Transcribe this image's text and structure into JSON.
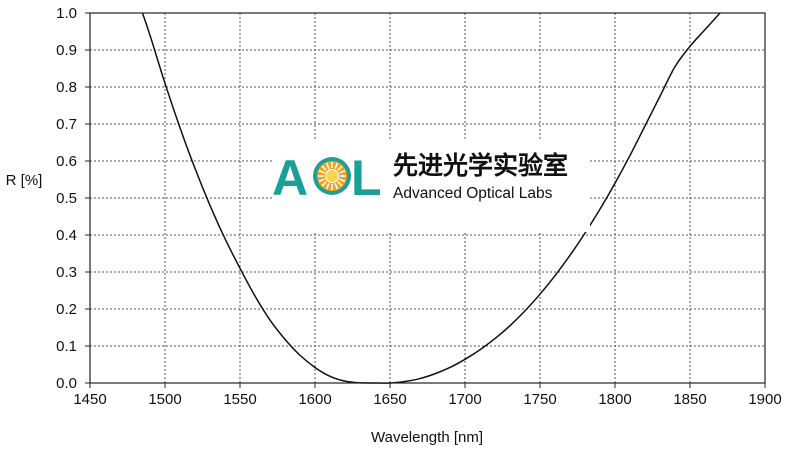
{
  "chart_data": {
    "type": "line",
    "title": "",
    "xlabel": "Wavelength [nm]",
    "ylabel": "R [%]",
    "xlim": [
      1450,
      1900
    ],
    "ylim": [
      0.0,
      1.0
    ],
    "xticks": [
      "1450",
      "1500",
      "1550",
      "1600",
      "1650",
      "1700",
      "1750",
      "1800",
      "1850",
      "1900"
    ],
    "yticks": [
      "0.0",
      "0.1",
      "0.2",
      "0.3",
      "0.4",
      "0.5",
      "0.6",
      "0.7",
      "0.8",
      "0.9",
      "1.0"
    ],
    "grid": true,
    "legend": "none",
    "series": [
      {
        "color": "#111111",
        "x": [
          1485,
          1490,
          1500,
          1510,
          1520,
          1530,
          1540,
          1550,
          1560,
          1570,
          1580,
          1590,
          1600,
          1610,
          1620,
          1630,
          1640,
          1650,
          1660,
          1670,
          1680,
          1690,
          1700,
          1710,
          1720,
          1730,
          1740,
          1750,
          1760,
          1770,
          1780,
          1790,
          1800,
          1810,
          1820,
          1830,
          1840,
          1850,
          1860,
          1870
        ],
        "y": [
          1.0,
          0.94,
          0.81,
          0.69,
          0.58,
          0.48,
          0.39,
          0.31,
          0.235,
          0.17,
          0.118,
          0.075,
          0.042,
          0.018,
          0.005,
          0.0005,
          0.0,
          0.0,
          0.004,
          0.012,
          0.025,
          0.042,
          0.064,
          0.09,
          0.12,
          0.155,
          0.195,
          0.24,
          0.29,
          0.345,
          0.405,
          0.47,
          0.54,
          0.615,
          0.695,
          0.775,
          0.855,
          0.91,
          0.955,
          1.0
        ]
      }
    ]
  },
  "logo": {
    "letters": [
      "A",
      "L"
    ],
    "cn_name": "先进光学实验室",
    "en_name": "Advanced Optical Labs",
    "colors": {
      "teal": "#1aa098",
      "sun_orange": "#f5a11d",
      "sun_yellow": "#ffd24a"
    }
  }
}
